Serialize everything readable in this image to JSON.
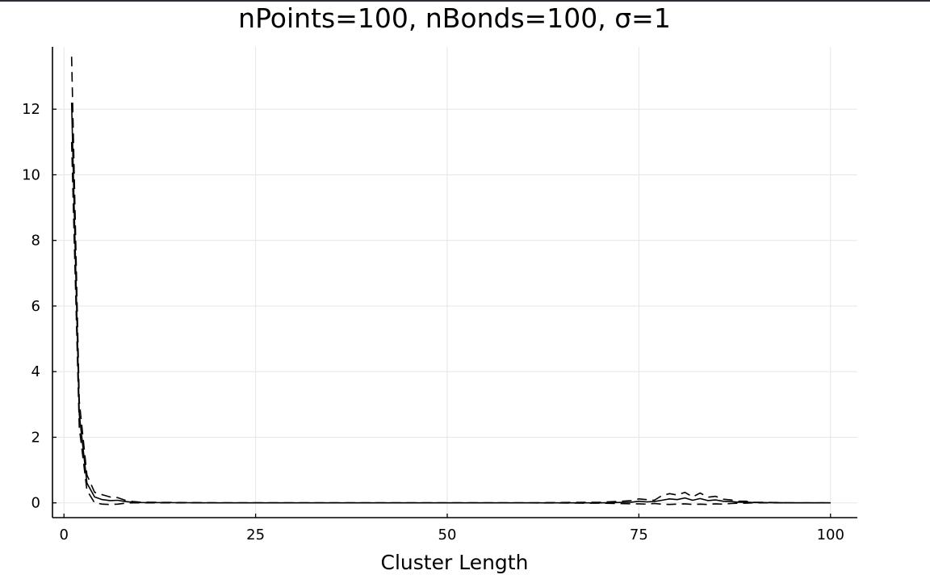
{
  "chart_data": {
    "type": "line",
    "title": "nPoints=100, nBonds=100, σ=1",
    "xlabel": "Cluster Length",
    "ylabel": "",
    "xlim": [
      -1.5,
      103.5
    ],
    "ylim": [
      -0.45,
      13.9
    ],
    "xticks": [
      0,
      25,
      50,
      75,
      100
    ],
    "yticks": [
      0,
      2,
      4,
      6,
      8,
      10,
      12
    ],
    "grid": true,
    "legend": "none",
    "colors": {
      "line": "#000000",
      "grid": "#e6e6e6",
      "axis": "#000000"
    },
    "series": [
      {
        "style": "solid",
        "x": [
          1,
          2,
          3,
          4,
          5,
          6,
          7,
          8,
          9,
          10,
          15,
          20,
          30,
          40,
          50,
          60,
          70,
          72,
          74,
          75,
          76,
          77,
          78,
          79,
          80,
          81,
          82,
          83,
          84,
          85,
          86,
          87,
          88,
          89,
          90,
          95,
          100
        ],
        "y": [
          12.2,
          2.7,
          0.6,
          0.18,
          0.1,
          0.07,
          0.08,
          0.04,
          0.02,
          0.01,
          0.005,
          0,
          0,
          0,
          0,
          0,
          0,
          0.01,
          0.02,
          0.05,
          0.03,
          0.04,
          0.08,
          0.12,
          0.1,
          0.15,
          0.08,
          0.13,
          0.07,
          0.09,
          0.05,
          0.04,
          0.02,
          0.02,
          0.01,
          0,
          0
        ]
      },
      {
        "style": "dashed",
        "x": [
          1,
          2,
          3,
          4,
          5,
          6,
          7,
          8,
          9,
          10,
          15,
          20,
          30,
          40,
          50,
          60,
          70,
          72,
          74,
          75,
          76,
          77,
          78,
          79,
          80,
          81,
          82,
          83,
          84,
          85,
          86,
          87,
          88,
          89,
          90,
          95,
          100
        ],
        "y": [
          13.6,
          3.1,
          0.85,
          0.32,
          0.25,
          0.18,
          0.16,
          0.08,
          0.04,
          0.02,
          0.01,
          0,
          0,
          0,
          0,
          0,
          0.02,
          0.04,
          0.07,
          0.12,
          0.1,
          0.08,
          0.22,
          0.28,
          0.24,
          0.32,
          0.18,
          0.3,
          0.17,
          0.2,
          0.11,
          0.09,
          0.05,
          0.05,
          0.02,
          0,
          0
        ]
      },
      {
        "style": "dashed",
        "x": [
          1,
          2,
          3,
          4,
          5,
          6,
          7,
          8,
          9,
          10,
          15,
          20,
          30,
          40,
          50,
          60,
          70,
          72,
          74,
          75,
          76,
          77,
          78,
          79,
          80,
          81,
          82,
          83,
          84,
          85,
          86,
          87,
          88,
          89,
          90,
          95,
          100
        ],
        "y": [
          11.0,
          2.3,
          0.38,
          0.0,
          -0.04,
          -0.05,
          -0.04,
          -0.01,
          0,
          0,
          0,
          0,
          0,
          0,
          0,
          0,
          -0.01,
          -0.02,
          -0.03,
          -0.03,
          -0.04,
          -0.02,
          -0.04,
          -0.05,
          -0.04,
          -0.03,
          -0.05,
          -0.04,
          -0.05,
          -0.03,
          -0.04,
          -0.02,
          -0.01,
          -0.01,
          0,
          0,
          0
        ]
      }
    ]
  }
}
